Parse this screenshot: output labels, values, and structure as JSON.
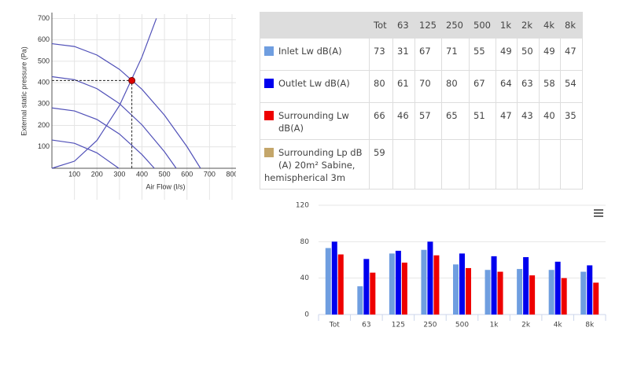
{
  "chart_data": [
    {
      "type": "line",
      "xlabel": "Air Flow (l/s)",
      "ylabel": "External static pressure (Pa)",
      "xlim": [
        0,
        800
      ],
      "ylim": [
        0,
        720
      ],
      "xticks": [
        100,
        200,
        300,
        400,
        500,
        600,
        700,
        800
      ],
      "yticks": [
        100,
        200,
        300,
        400,
        500,
        600,
        700
      ],
      "grid": true,
      "series": [
        {
          "color": "#5050b8",
          "x": [
            0,
            100,
            200,
            300,
            400,
            500,
            600,
            660
          ],
          "values": [
            582,
            569,
            529,
            462,
            369,
            248,
            101,
            0
          ]
        },
        {
          "color": "#5050b8",
          "x": [
            0,
            100,
            200,
            300,
            400,
            500,
            552
          ],
          "values": [
            428,
            414,
            372,
            302,
            203,
            77,
            0
          ]
        },
        {
          "color": "#5050b8",
          "x": [
            0,
            100,
            200,
            300,
            400,
            455
          ],
          "values": [
            282,
            268,
            228,
            160,
            64,
            0
          ]
        },
        {
          "color": "#5050b8",
          "x": [
            0,
            100,
            200,
            297
          ],
          "values": [
            132,
            117,
            72,
            0
          ]
        },
        {
          "color": "#5050b8",
          "x": [
            0,
            100,
            200,
            300,
            400,
            464
          ],
          "values": [
            0,
            33,
            130,
            293,
            520,
            700
          ]
        }
      ],
      "point": {
        "x": 355,
        "y": 410,
        "color": "#dd0000"
      }
    },
    {
      "type": "bar",
      "categories": [
        "Tot",
        "63",
        "125",
        "250",
        "500",
        "1k",
        "2k",
        "4k",
        "8k"
      ],
      "ylim": [
        0,
        120
      ],
      "yticks": [
        0,
        40,
        80,
        120
      ],
      "grid": true,
      "series": [
        {
          "color": "#6f9ee0",
          "values": [
            73,
            31,
            67,
            71,
            55,
            49,
            50,
            49,
            47
          ]
        },
        {
          "color": "#0000ee",
          "values": [
            80,
            61,
            70,
            80,
            67,
            64,
            63,
            58,
            54
          ]
        },
        {
          "color": "#ee0000",
          "values": [
            66,
            46,
            57,
            65,
            51,
            47,
            43,
            40,
            35
          ]
        }
      ]
    }
  ],
  "table": {
    "columns": [
      "Tot",
      "63",
      "125",
      "250",
      "500",
      "1k",
      "2k",
      "4k",
      "8k"
    ],
    "rows": [
      {
        "label": "Inlet Lw dB(A)",
        "color": "#6f9ee0",
        "values": [
          73,
          31,
          67,
          71,
          55,
          49,
          50,
          49,
          47
        ]
      },
      {
        "label": "Outlet Lw dB(A)",
        "color": "#0000ee",
        "values": [
          80,
          61,
          70,
          80,
          67,
          64,
          63,
          58,
          54
        ]
      },
      {
        "label": "Surrounding Lw dB(A)",
        "color": "#ee0000",
        "values": [
          66,
          46,
          57,
          65,
          51,
          47,
          43,
          40,
          35
        ]
      },
      {
        "label": "Surrounding Lp dB (A) 20m² Sabine, hemispherical 3m",
        "color": "#c4a66a",
        "values": [
          59
        ]
      }
    ]
  }
}
